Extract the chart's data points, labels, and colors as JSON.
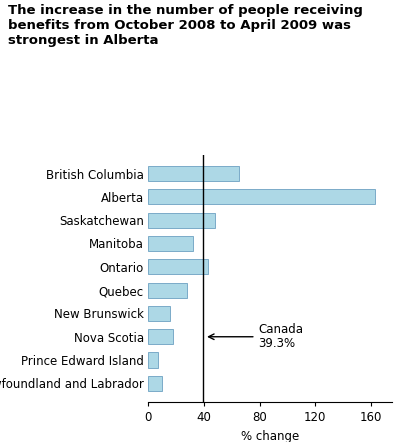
{
  "title": "The increase in the number of people receiving\nbenefits from October 2008 to April 2009 was\nstrongest in Alberta",
  "categories": [
    "Newfoundland and Labrador",
    "Prince Edward Island",
    "Nova Scotia",
    "New Brunswick",
    "Quebec",
    "Ontario",
    "Manitoba",
    "Saskatchewan",
    "Alberta",
    "British Columbia"
  ],
  "values": [
    10,
    7,
    18,
    16,
    28,
    43,
    32,
    48,
    163,
    65
  ],
  "bar_color": "#add8e6",
  "bar_edge_color": "#7baac8",
  "reference_line_value": 39.3,
  "reference_label_line1": "Canada",
  "reference_label_line2": "39.3%",
  "xlabel": "% change",
  "xlim": [
    0,
    175
  ],
  "xticks": [
    0,
    40,
    80,
    120,
    160
  ],
  "title_fontsize": 9.5,
  "axis_fontsize": 8.5,
  "tick_fontsize": 8.5
}
